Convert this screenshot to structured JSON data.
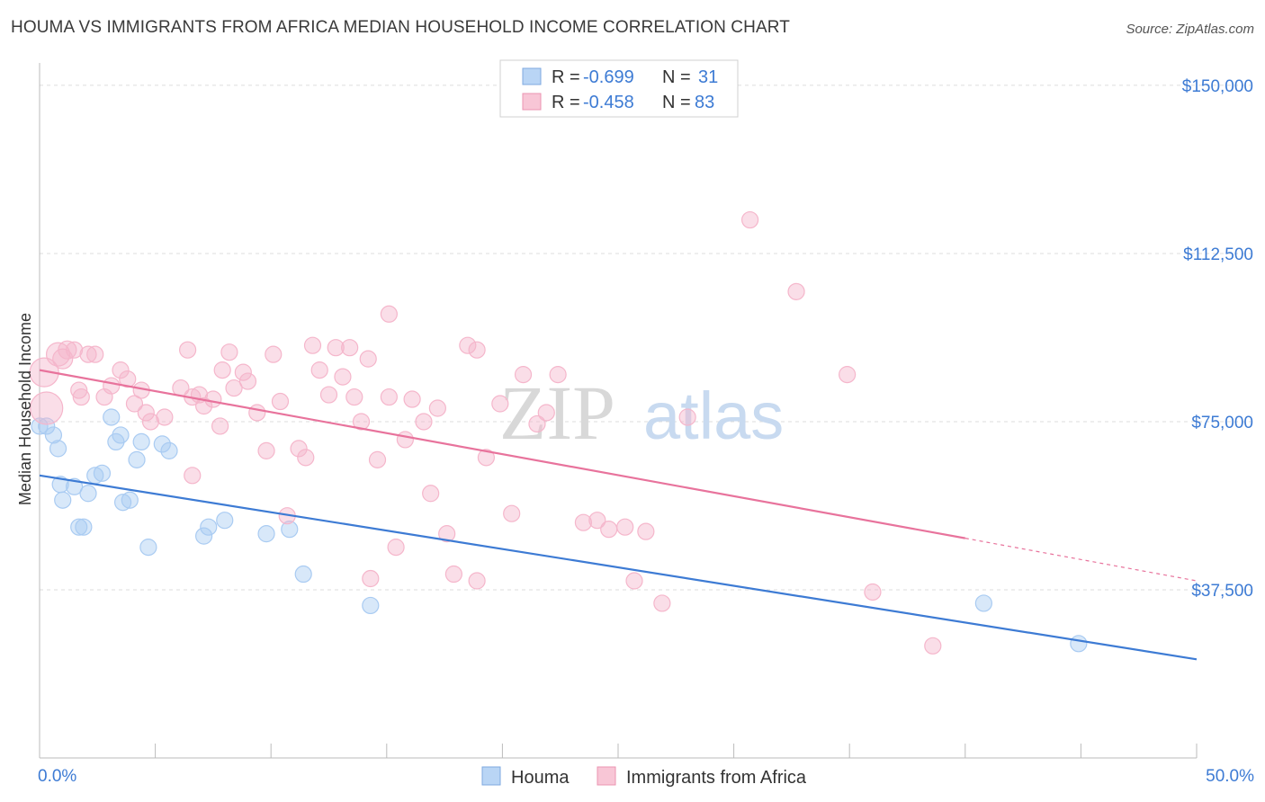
{
  "header": {
    "title": "HOUMA VS IMMIGRANTS FROM AFRICA MEDIAN HOUSEHOLD INCOME CORRELATION CHART",
    "source": "Source: ZipAtlas.com"
  },
  "watermark": {
    "zip": "ZIP",
    "atlas": "atlas"
  },
  "legend_top": {
    "r_label": "R =",
    "n_label": "N =",
    "rows": [
      {
        "r": "-0.699",
        "n": "31",
        "color": "#9ec5f0"
      },
      {
        "r": "-0.458",
        "n": "83",
        "color": "#f5afc6"
      }
    ]
  },
  "chart_data": {
    "type": "scatter",
    "title": "HOUMA VS IMMIGRANTS FROM AFRICA MEDIAN HOUSEHOLD INCOME CORRELATION CHART",
    "xlabel": "",
    "ylabel": "Median Household Income",
    "xlim": [
      0,
      50
    ],
    "ylim": [
      0,
      155000
    ],
    "x_tick_labels": [
      "0.0%",
      "50.0%"
    ],
    "y_ticks": [
      37500,
      75000,
      112500,
      150000
    ],
    "y_tick_labels": [
      "$37,500",
      "$75,000",
      "$112,500",
      "$150,000"
    ],
    "grid": true,
    "legend_position": "top-center",
    "series": [
      {
        "name": "Houma",
        "color": "#3d7bd4",
        "fill": "#a9cbf2",
        "trend": {
          "x": [
            0,
            50
          ],
          "y": [
            63000,
            22000
          ]
        },
        "points": [
          [
            0.0,
            74000
          ],
          [
            0.6,
            72000
          ],
          [
            0.8,
            69000
          ],
          [
            0.9,
            61000
          ],
          [
            1.0,
            57500
          ],
          [
            1.5,
            60500
          ],
          [
            1.7,
            51500
          ],
          [
            1.9,
            51500
          ],
          [
            2.1,
            59000
          ],
          [
            2.4,
            63000
          ],
          [
            2.7,
            63500
          ],
          [
            3.1,
            76000
          ],
          [
            3.3,
            70500
          ],
          [
            3.5,
            72000
          ],
          [
            3.6,
            57000
          ],
          [
            3.9,
            57500
          ],
          [
            4.2,
            66500
          ],
          [
            4.4,
            70500
          ],
          [
            4.7,
            47000
          ],
          [
            5.3,
            70000
          ],
          [
            5.6,
            68500
          ],
          [
            7.1,
            49500
          ],
          [
            7.3,
            51500
          ],
          [
            8.0,
            53000
          ],
          [
            9.8,
            50000
          ],
          [
            10.8,
            51000
          ],
          [
            11.4,
            41000
          ],
          [
            14.3,
            34000
          ],
          [
            40.8,
            34500
          ],
          [
            44.9,
            25500
          ],
          [
            0.3,
            74000
          ]
        ]
      },
      {
        "name": "Immigrants from Africa",
        "color": "#e8739c",
        "fill": "#f5b6cb",
        "trend": {
          "x": [
            0,
            40
          ],
          "y": [
            86500,
            49000
          ]
        },
        "trend_dashed": {
          "x": [
            40,
            50
          ],
          "y": [
            49000,
            39500
          ]
        },
        "points": [
          [
            0.2,
            86000
          ],
          [
            0.3,
            78000
          ],
          [
            0.8,
            90000
          ],
          [
            1.0,
            89000
          ],
          [
            1.2,
            91000
          ],
          [
            1.5,
            91000
          ],
          [
            1.7,
            82000
          ],
          [
            1.8,
            80500
          ],
          [
            2.1,
            90000
          ],
          [
            2.4,
            90000
          ],
          [
            2.8,
            80500
          ],
          [
            3.1,
            83000
          ],
          [
            3.5,
            86500
          ],
          [
            3.8,
            84500
          ],
          [
            4.1,
            79000
          ],
          [
            4.4,
            82000
          ],
          [
            4.6,
            77000
          ],
          [
            4.8,
            75000
          ],
          [
            5.4,
            76000
          ],
          [
            6.1,
            82500
          ],
          [
            6.4,
            91000
          ],
          [
            6.6,
            80500
          ],
          [
            6.9,
            81000
          ],
          [
            7.1,
            78500
          ],
          [
            7.5,
            80000
          ],
          [
            7.8,
            74000
          ],
          [
            7.9,
            86500
          ],
          [
            8.2,
            90500
          ],
          [
            8.4,
            82500
          ],
          [
            8.8,
            86000
          ],
          [
            9.0,
            84000
          ],
          [
            9.4,
            77000
          ],
          [
            9.8,
            68500
          ],
          [
            10.1,
            90000
          ],
          [
            10.4,
            79500
          ],
          [
            10.7,
            54000
          ],
          [
            11.2,
            69000
          ],
          [
            11.5,
            67000
          ],
          [
            11.8,
            92000
          ],
          [
            12.1,
            86500
          ],
          [
            12.5,
            81000
          ],
          [
            12.8,
            91500
          ],
          [
            13.1,
            85000
          ],
          [
            13.4,
            91500
          ],
          [
            13.6,
            80500
          ],
          [
            13.9,
            75000
          ],
          [
            14.2,
            89000
          ],
          [
            14.6,
            66500
          ],
          [
            15.1,
            80500
          ],
          [
            15.4,
            47000
          ],
          [
            15.8,
            71000
          ],
          [
            16.1,
            80000
          ],
          [
            16.6,
            75000
          ],
          [
            16.9,
            59000
          ],
          [
            17.2,
            78000
          ],
          [
            17.6,
            50000
          ],
          [
            17.9,
            41000
          ],
          [
            18.5,
            92000
          ],
          [
            18.9,
            91000
          ],
          [
            19.3,
            67000
          ],
          [
            19.9,
            79000
          ],
          [
            20.4,
            54500
          ],
          [
            20.9,
            85500
          ],
          [
            21.5,
            74500
          ],
          [
            21.9,
            77000
          ],
          [
            22.4,
            85500
          ],
          [
            23.5,
            52500
          ],
          [
            24.1,
            53000
          ],
          [
            24.6,
            51000
          ],
          [
            25.3,
            51500
          ],
          [
            25.7,
            39500
          ],
          [
            26.2,
            50500
          ],
          [
            26.9,
            34500
          ],
          [
            28.0,
            76000
          ],
          [
            30.7,
            120000
          ],
          [
            32.7,
            104000
          ],
          [
            34.9,
            85500
          ],
          [
            36.0,
            37000
          ],
          [
            38.6,
            25000
          ],
          [
            14.3,
            40000
          ],
          [
            18.9,
            39500
          ],
          [
            6.6,
            63000
          ],
          [
            15.1,
            99000
          ]
        ]
      }
    ]
  },
  "legend_bottom": {
    "items": [
      {
        "label": "Houma",
        "color": "#a9cbf2"
      },
      {
        "label": "Immigrants from Africa",
        "color": "#f5b6cb"
      }
    ]
  }
}
